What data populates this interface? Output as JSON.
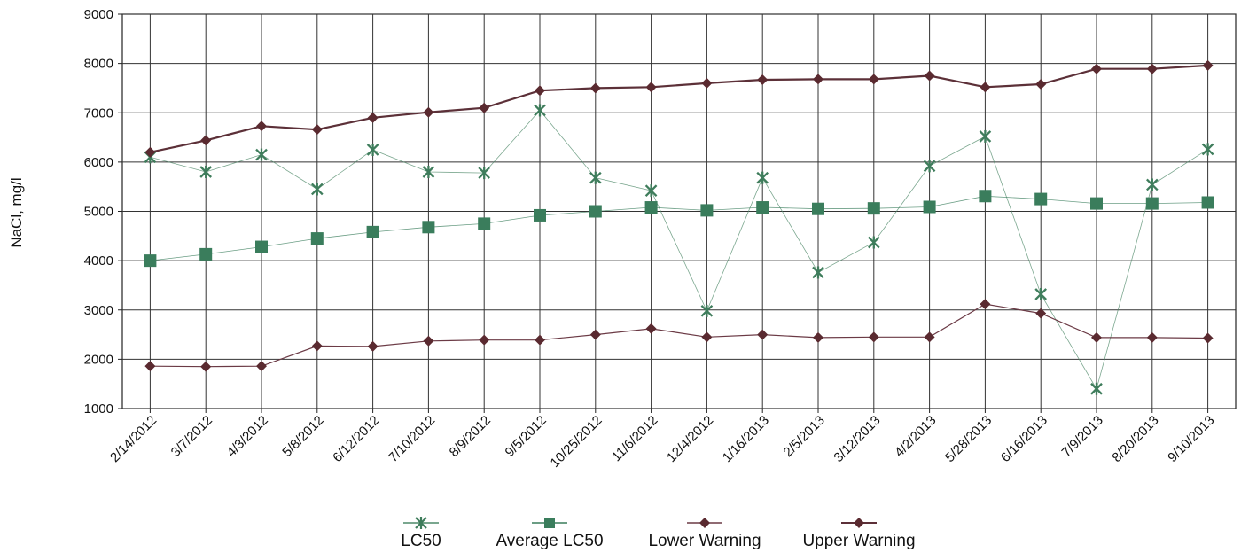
{
  "chart_data": {
    "type": "line",
    "title": "",
    "xlabel": "",
    "ylabel": "NaCl, mg/l",
    "ylim": [
      1000,
      9000
    ],
    "yticks": [
      1000,
      2000,
      3000,
      4000,
      5000,
      6000,
      7000,
      8000,
      9000
    ],
    "grid": true,
    "legend_position": "bottom",
    "categories": [
      "2/14/2012",
      "3/7/2012",
      "4/3/2012",
      "5/8/2012",
      "6/12/2012",
      "7/10/2012",
      "8/9/2012",
      "9/5/2012",
      "10/25/2012",
      "11/6/2012",
      "12/4/2012",
      "1/16/2013",
      "2/5/2013",
      "3/12/2013",
      "4/2/2013",
      "5/28/2013",
      "6/16/2013",
      "7/9/2013",
      "8/20/2013",
      "9/10/2013"
    ],
    "series": [
      {
        "name": "LC50",
        "color": "#4f8a6a",
        "marker": "star",
        "values": [
          6100,
          5800,
          6150,
          5450,
          6250,
          5800,
          5780,
          7050,
          5680,
          5420,
          2980,
          5680,
          3760,
          4370,
          5920,
          6520,
          3320,
          1400,
          5540,
          6260
        ]
      },
      {
        "name": "Average LC50",
        "color": "#3a7d5c",
        "marker": "square",
        "values": [
          4000,
          4130,
          4280,
          4450,
          4580,
          4680,
          4750,
          4920,
          5000,
          5080,
          5020,
          5080,
          5050,
          5060,
          5090,
          5310,
          5250,
          5160,
          5160,
          5180
        ]
      },
      {
        "name": "Lower Warning",
        "color": "#6b3a45",
        "marker": "diamond",
        "values": [
          1860,
          1850,
          1860,
          2270,
          2260,
          2370,
          2390,
          2390,
          2500,
          2620,
          2450,
          2500,
          2440,
          2450,
          2450,
          3120,
          2930,
          2440,
          2440,
          2430
        ]
      },
      {
        "name": "Upper Warning",
        "color": "#5c3038",
        "marker": "diamond",
        "values": [
          6200,
          6440,
          6730,
          6660,
          6900,
          7010,
          7100,
          7450,
          7500,
          7520,
          7600,
          7670,
          7680,
          7680,
          7750,
          7520,
          7580,
          7890,
          7890,
          7960
        ]
      }
    ]
  }
}
